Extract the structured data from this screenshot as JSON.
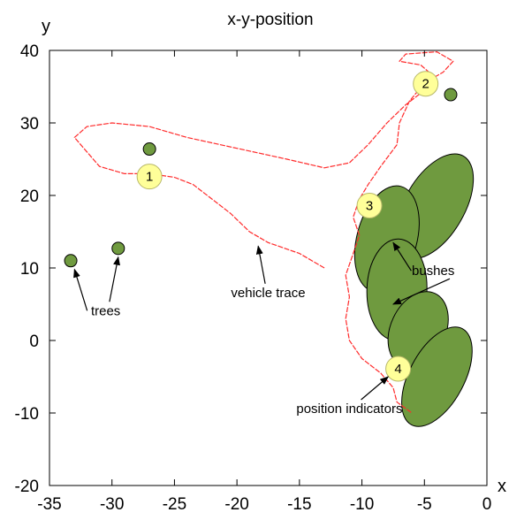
{
  "chart_data": {
    "type": "scatter",
    "title": "x-y-position",
    "xlabel": "x",
    "ylabel": "y",
    "xlim": [
      -35,
      0
    ],
    "ylim": [
      -20,
      40
    ],
    "xticks": [
      -35,
      -30,
      -25,
      -20,
      -15,
      -10,
      -5,
      0
    ],
    "yticks": [
      -20,
      -10,
      0,
      10,
      20,
      30,
      40
    ],
    "grid": false,
    "colors": {
      "trace": "#ff2a2a",
      "vegetation_fill": "#6f9a3f",
      "vegetation_stroke": "#000000",
      "indicator_fill": "#ffff99",
      "indicator_stroke": "#b8b86a"
    },
    "vehicle_trace": [
      [
        -13,
        10
      ],
      [
        -15,
        12
      ],
      [
        -17.5,
        13.5
      ],
      [
        -19,
        15
      ],
      [
        -20.5,
        17.5
      ],
      [
        -22,
        19.5
      ],
      [
        -23.5,
        21.5
      ],
      [
        -25,
        22.5
      ],
      [
        -27,
        23
      ],
      [
        -29,
        23
      ],
      [
        -31,
        24
      ],
      [
        -32,
        26
      ],
      [
        -33,
        28
      ],
      [
        -32,
        29.5
      ],
      [
        -30,
        30
      ],
      [
        -27,
        29.5
      ],
      [
        -24,
        28
      ],
      [
        -20,
        26.5
      ],
      [
        -16,
        25
      ],
      [
        -13,
        23.8
      ],
      [
        -11,
        24.5
      ],
      [
        -9.5,
        27
      ],
      [
        -8,
        30
      ],
      [
        -6.5,
        32.5
      ],
      [
        -5,
        34.5
      ],
      [
        -4.3,
        36.5
      ],
      [
        -5.3,
        38
      ],
      [
        -7,
        38.5
      ],
      [
        -6.5,
        39.5
      ],
      [
        -4,
        39.8
      ],
      [
        -2.7,
        38.5
      ],
      [
        -3.5,
        37
      ],
      [
        -5,
        35.5
      ],
      [
        -6.2,
        33
      ],
      [
        -7,
        30
      ],
      [
        -7.2,
        27
      ],
      [
        -8.5,
        24
      ],
      [
        -9.5,
        21.5
      ],
      [
        -10.2,
        19.5
      ],
      [
        -10.7,
        17
      ],
      [
        -10.2,
        14.5
      ],
      [
        -10.8,
        11.5
      ],
      [
        -11.3,
        9
      ],
      [
        -11,
        6
      ],
      [
        -11.3,
        3
      ],
      [
        -11,
        0
      ],
      [
        -10,
        -2.5
      ],
      [
        -8.5,
        -4.5
      ],
      [
        -7.5,
        -6.5
      ],
      [
        -7.2,
        -8.5
      ],
      [
        -6,
        -10
      ]
    ],
    "trees": [
      {
        "x": -33.3,
        "y": 11
      },
      {
        "x": -29.5,
        "y": 12.7
      },
      {
        "x": -27,
        "y": 26.4
      },
      {
        "x": -2.9,
        "y": 33.9
      }
    ],
    "bushes": [
      {
        "cx": -4.2,
        "cy": 18.5,
        "rx": 8,
        "ry": 2.4,
        "angle_deg": 60
      },
      {
        "cx": -8,
        "cy": 14,
        "rx": 7.5,
        "ry": 2.4,
        "angle_deg": 75
      },
      {
        "cx": -7.2,
        "cy": 7,
        "rx": 7,
        "ry": 2.4,
        "angle_deg": 88
      },
      {
        "cx": -5.5,
        "cy": 1.5,
        "rx": 5.5,
        "ry": 2.2,
        "angle_deg": 65
      },
      {
        "cx": -4,
        "cy": -5,
        "rx": 7.5,
        "ry": 2.2,
        "angle_deg": 62
      }
    ],
    "position_indicators": [
      {
        "label": "1",
        "x": -27,
        "y": 22.6
      },
      {
        "label": "2",
        "x": -4.9,
        "y": 35.4
      },
      {
        "label": "3",
        "x": -9.4,
        "y": 18.6
      },
      {
        "label": "4",
        "x": -7.1,
        "y": -3.9
      }
    ],
    "annotations": [
      {
        "text": "trees",
        "x": -30.5,
        "y": 3.5,
        "arrows_to": [
          [
            -33,
            9.8
          ],
          [
            -29.5,
            11.5
          ]
        ]
      },
      {
        "text": "vehicle trace",
        "x": -17.5,
        "y": 6,
        "arrows_to": [
          [
            -18.3,
            13
          ]
        ]
      },
      {
        "text": "bushes",
        "x": -4.3,
        "y": 9,
        "arrows_to": [
          [
            -7.5,
            13.5
          ],
          [
            -7.5,
            5
          ]
        ]
      },
      {
        "text": "position indicators",
        "x": -11,
        "y": -10,
        "arrows_to": [
          [
            -7.9,
            -5
          ]
        ]
      }
    ]
  }
}
